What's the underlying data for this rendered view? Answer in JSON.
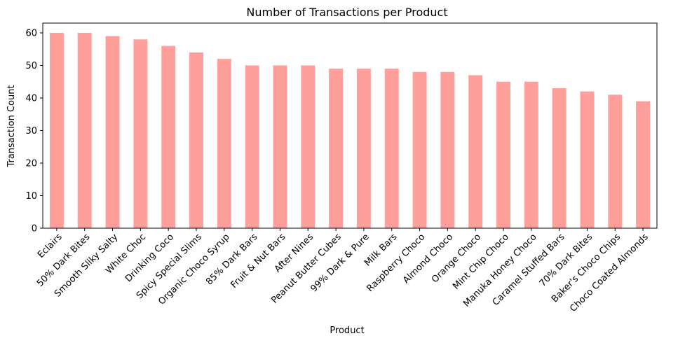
{
  "chart_data": {
    "type": "bar",
    "title": "Number of Transactions per Product",
    "xlabel": "Product",
    "ylabel": "Transaction Count",
    "ylim": [
      0,
      63
    ],
    "yticks": [
      0,
      10,
      20,
      30,
      40,
      50,
      60
    ],
    "grid": false,
    "bar_color": "#ff9f9b",
    "categories": [
      "Eclairs",
      "50% Dark Bites",
      "Smooth Sliky Salty",
      "White Choc",
      "Drinking Coco",
      "Spicy Special Slims",
      "Organic Choco Syrup",
      "85% Dark Bars",
      "Fruit & Nut Bars",
      "After Nines",
      "Peanut Butter Cubes",
      "99% Dark & Pure",
      "Milk Bars",
      "Raspberry Choco",
      "Almond Choco",
      "Orange Choco",
      "Mint Chip Choco",
      "Manuka Honey Choco",
      "Caramel Stuffed Bars",
      "70% Dark Bites",
      "Baker's Choco Chips",
      "Choco Coated Almonds"
    ],
    "values": [
      60,
      60,
      59,
      58,
      56,
      54,
      52,
      50,
      50,
      50,
      49,
      49,
      49,
      48,
      48,
      47,
      45,
      45,
      43,
      42,
      41,
      39
    ]
  }
}
